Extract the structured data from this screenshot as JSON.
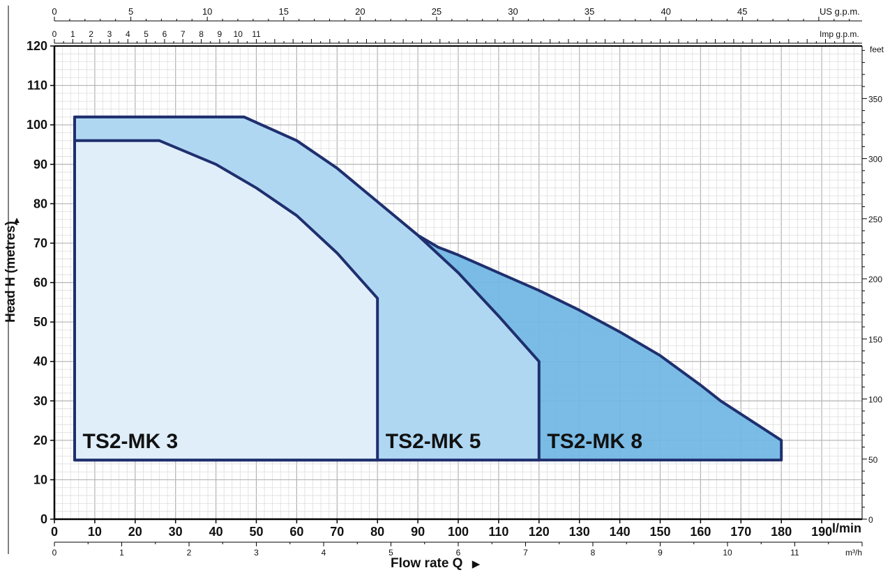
{
  "chart_data": {
    "type": "area",
    "xlabel": "Flow rate  Q",
    "ylabel": "Head H (metres)",
    "x_unit_bottom": "l/min",
    "y_unit_right": "feet",
    "xlim": [
      0,
      200
    ],
    "ylim": [
      0,
      120
    ],
    "grid": true,
    "x_ticks": [
      0,
      10,
      20,
      30,
      40,
      50,
      60,
      70,
      80,
      90,
      100,
      110,
      120,
      130,
      140,
      150,
      160,
      170,
      180,
      190
    ],
    "y_ticks": [
      0,
      10,
      20,
      30,
      40,
      50,
      60,
      70,
      80,
      90,
      100,
      110,
      120
    ],
    "secondary_axes": {
      "top_us_gpm": {
        "unit": "US g.p.m.",
        "ticks": [
          0,
          5,
          10,
          15,
          20,
          25,
          30,
          35,
          40,
          45
        ]
      },
      "top_imp_gpm": {
        "unit": "Imp g.p.m.",
        "ticks": [
          0,
          1,
          2,
          3,
          4,
          5,
          6,
          7,
          8,
          9,
          10,
          11
        ]
      },
      "bottom_m3h": {
        "unit": "m³/h",
        "ticks": [
          0,
          1,
          2,
          3,
          4,
          5,
          6,
          7,
          8,
          9,
          10,
          11
        ]
      },
      "right_feet": {
        "unit": "feet",
        "ticks": [
          0,
          50,
          100,
          150,
          200,
          250,
          300,
          350
        ]
      }
    },
    "series": [
      {
        "name": "TS2-MK 8",
        "color": "#6fb6e3",
        "points": [
          [
            5,
            15
          ],
          [
            5,
            102
          ],
          [
            47,
            102
          ],
          [
            60,
            96
          ],
          [
            70,
            89
          ],
          [
            80,
            80.5
          ],
          [
            90,
            72
          ],
          [
            95,
            69
          ],
          [
            100,
            67
          ],
          [
            110,
            62.5
          ],
          [
            120,
            58
          ],
          [
            130,
            53
          ],
          [
            140,
            47.5
          ],
          [
            150,
            41.5
          ],
          [
            160,
            34
          ],
          [
            165,
            30
          ],
          [
            180,
            20
          ],
          [
            180,
            15
          ]
        ]
      },
      {
        "name": "TS2-MK 5",
        "color": "#b4d9f3",
        "points": [
          [
            5,
            15
          ],
          [
            5,
            102
          ],
          [
            47,
            102
          ],
          [
            60,
            96
          ],
          [
            70,
            89
          ],
          [
            80,
            80.5
          ],
          [
            90,
            72
          ],
          [
            100,
            62.5
          ],
          [
            110,
            51.5
          ],
          [
            120,
            40
          ],
          [
            120,
            15
          ]
        ]
      },
      {
        "name": "TS2-MK 3",
        "color": "#e3f0fa",
        "points": [
          [
            5,
            15
          ],
          [
            5,
            96
          ],
          [
            26,
            96
          ],
          [
            40,
            90
          ],
          [
            50,
            84
          ],
          [
            60,
            77
          ],
          [
            70,
            67.5
          ],
          [
            80,
            56
          ],
          [
            80,
            15
          ]
        ]
      }
    ],
    "labels": [
      {
        "text": "TS2-MK 3",
        "x": 7,
        "y": 18
      },
      {
        "text": "TS2-MK 5",
        "x": 82,
        "y": 18
      },
      {
        "text": "TS2-MK 8",
        "x": 122,
        "y": 18
      }
    ],
    "outline_color": "#1f2f6e"
  }
}
